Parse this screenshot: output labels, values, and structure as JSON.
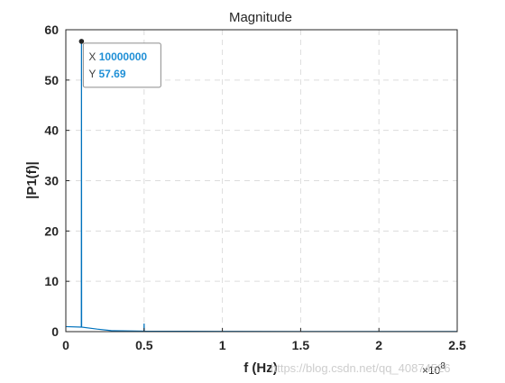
{
  "chart_data": {
    "type": "line",
    "title": "Magnitude",
    "xlabel": "f (Hz)",
    "ylabel": "|P1(f)|",
    "x_exponent_label": "×10",
    "x_exponent_power": "8",
    "xlim": [
      0,
      250000000
    ],
    "ylim": [
      0,
      60
    ],
    "x_scale": 100000000,
    "xticks": [
      0,
      50000000,
      100000000,
      150000000,
      200000000,
      250000000
    ],
    "xtick_labels": [
      "0",
      "0.5",
      "1",
      "1.5",
      "2",
      "2.5"
    ],
    "yticks": [
      0,
      10,
      20,
      30,
      40,
      50,
      60
    ],
    "ytick_labels": [
      "0",
      "10",
      "20",
      "30",
      "40",
      "50",
      "60"
    ],
    "grid": true,
    "line_color": "#0072BD",
    "series": [
      {
        "x": [
          0,
          9900000,
          10000000,
          10100000,
          20000000,
          29000000,
          49900000,
          50000000,
          50100000,
          100000000,
          150000000,
          200000000,
          250000000
        ],
        "y": [
          1.0,
          0.9,
          57.69,
          0.9,
          0.5,
          0.2,
          0.1,
          1.6,
          0.1,
          0.05,
          0.03,
          0.02,
          0.02
        ]
      }
    ],
    "datatip": {
      "x_label": "X",
      "x_value": "10000000",
      "y_label": "Y",
      "y_value": "57.69",
      "x": 10000000,
      "y": 57.69
    }
  },
  "watermark": "https://blog.csdn.net/qq_40874526"
}
